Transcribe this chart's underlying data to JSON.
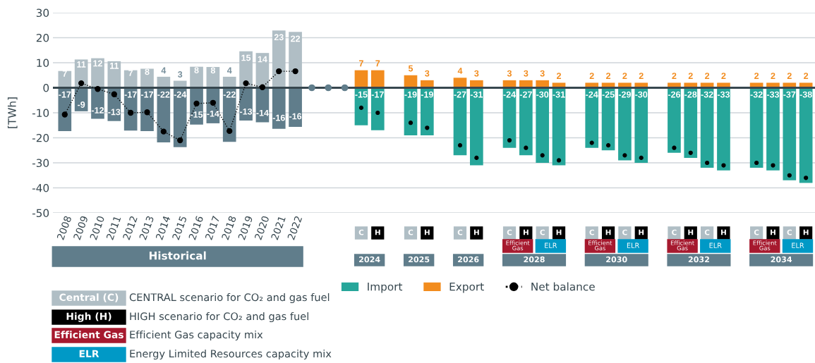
{
  "chart_data": {
    "type": "bar",
    "ylabel": "[TWh]",
    "categories": [
      "2008",
      "2009",
      "2010",
      "2011",
      "2012",
      "2013",
      "2014",
      "2015",
      "2016",
      "2017",
      "2018",
      "2019",
      "2020",
      "2021",
      "2022",
      null,
      null,
      null,
      "C",
      "H",
      null,
      "C",
      "H",
      null,
      "C",
      "H",
      null,
      "C",
      "H",
      "C",
      "H",
      null,
      "C",
      "H",
      "C",
      "H",
      null,
      "C",
      "H",
      "C",
      "H",
      null,
      "C",
      "H",
      "C",
      "H"
    ],
    "series": [
      {
        "name": "Import",
        "color": "#26a69a",
        "colors": [
          "#607d8b",
          "#607d8b",
          "#607d8b",
          "#607d8b",
          "#607d8b",
          "#607d8b",
          "#607d8b",
          "#607d8b",
          "#607d8b",
          "#607d8b",
          "#607d8b",
          "#607d8b",
          "#607d8b",
          "#607d8b",
          "#607d8b",
          "#26a69a",
          "#26a69a",
          "#26a69a",
          "#26a69a",
          "#26a69a",
          "#26a69a",
          "#26a69a",
          "#26a69a",
          "#26a69a",
          "#26a69a",
          "#26a69a",
          "#26a69a",
          "#26a69a",
          "#26a69a",
          "#26a69a",
          "#26a69a",
          "#26a69a",
          "#26a69a",
          "#26a69a",
          "#26a69a",
          "#26a69a",
          "#26a69a",
          "#26a69a",
          "#26a69a",
          "#26a69a",
          "#26a69a",
          "#26a69a",
          "#26a69a",
          "#26a69a",
          "#26a69a",
          "#26a69a"
        ],
        "values": [
          -17.3,
          -9.4,
          -12.4,
          -13.3,
          -17.1,
          -17.3,
          -21.8,
          -23.7,
          -14.7,
          -14.2,
          -21.6,
          -13.1,
          -13.8,
          -16.4,
          -15.6,
          null,
          null,
          null,
          -15,
          -17,
          null,
          -19,
          -19,
          null,
          -27,
          -31,
          null,
          -24,
          -27,
          -30,
          -31,
          null,
          -24,
          -25,
          -29,
          -30,
          null,
          -26,
          -28,
          -32,
          -33,
          null,
          -32,
          -33,
          -37,
          -38
        ],
        "value_labels": [
          "-17",
          "-9",
          "-12",
          "-13",
          "-17",
          "-17",
          "-22",
          "-24",
          "-15",
          "-14",
          "-22",
          "-13",
          "-14",
          "-16",
          "-16",
          null,
          null,
          null,
          "-15",
          "-17",
          null,
          "-19",
          "-19",
          null,
          "-27",
          "-31",
          null,
          "-24",
          "-27",
          "-30",
          "-31",
          null,
          "-24",
          "-25",
          "-29",
          "-30",
          null,
          "-26",
          "-28",
          "-32",
          "-33",
          null,
          "-32",
          "-33",
          "-37",
          "-38"
        ]
      },
      {
        "name": "Export",
        "color": "#f28c1e",
        "colors": [
          "#b0bec5",
          "#b0bec5",
          "#b0bec5",
          "#b0bec5",
          "#b0bec5",
          "#b0bec5",
          "#b0bec5",
          "#b0bec5",
          "#b0bec5",
          "#b0bec5",
          "#b0bec5",
          "#b0bec5",
          "#b0bec5",
          "#b0bec5",
          "#b0bec5",
          "#f28c1e",
          "#f28c1e",
          "#f28c1e",
          "#f28c1e",
          "#f28c1e",
          "#f28c1e",
          "#f28c1e",
          "#f28c1e",
          "#f28c1e",
          "#f28c1e",
          "#f28c1e",
          "#f28c1e",
          "#f28c1e",
          "#f28c1e",
          "#f28c1e",
          "#f28c1e",
          "#f28c1e",
          "#f28c1e",
          "#f28c1e",
          "#f28c1e",
          "#f28c1e",
          "#f28c1e",
          "#f28c1e",
          "#f28c1e",
          "#f28c1e",
          "#f28c1e",
          "#f28c1e",
          "#f28c1e",
          "#f28c1e",
          "#f28c1e",
          "#f28c1e"
        ],
        "values": [
          6.7,
          11.3,
          11.8,
          10.6,
          7,
          7.6,
          4.4,
          2.8,
          8.4,
          8.3,
          4.4,
          14.6,
          13.9,
          22.9,
          22.3,
          null,
          null,
          null,
          7,
          7,
          null,
          5,
          3,
          null,
          4,
          3,
          null,
          3,
          3,
          3,
          2,
          null,
          2,
          2,
          2,
          2,
          null,
          2,
          2,
          2,
          2,
          null,
          2,
          2,
          2,
          2
        ],
        "value_labels": [
          "7",
          "11",
          "12",
          "11",
          "7",
          "8",
          "4",
          "3",
          "8",
          "8",
          "4",
          "15",
          "14",
          "23",
          "22",
          null,
          null,
          null,
          "7",
          "7",
          null,
          "5",
          "3",
          null,
          "4",
          "3",
          null,
          "3",
          "3",
          "3",
          "2",
          null,
          "2",
          "2",
          "2",
          "2",
          null,
          "2",
          "2",
          "2",
          "2",
          null,
          "2",
          "2",
          "2",
          "2"
        ]
      },
      {
        "name": "Net balance",
        "type": "line",
        "color": "#000000",
        "line_style": "dotted",
        "values": [
          -10.7,
          1.8,
          -0.5,
          -2.6,
          -10,
          -9.8,
          -17.5,
          -21,
          -6.3,
          -6,
          -17.3,
          1.8,
          0.2,
          6.6,
          6.6,
          null,
          null,
          null,
          null,
          null,
          null,
          null,
          null,
          null,
          null,
          null,
          null,
          null,
          null,
          null,
          null,
          null,
          null,
          null,
          null,
          null,
          null,
          null,
          null,
          null,
          null,
          null,
          null,
          null,
          null,
          null
        ]
      },
      {
        "type": "scatter",
        "color": "#000000",
        "values": [
          null,
          null,
          null,
          null,
          null,
          null,
          null,
          null,
          null,
          null,
          null,
          null,
          null,
          null,
          null,
          null,
          null,
          null,
          -8,
          -10,
          null,
          -14,
          -16,
          null,
          -23,
          -28,
          null,
          -21,
          -24,
          -27,
          -29,
          null,
          -22,
          -23,
          -27,
          -28,
          null,
          -24,
          -26,
          -30,
          -31,
          null,
          -30,
          -31,
          -35,
          -36
        ]
      }
    ],
    "ylim": [
      -50,
      30
    ],
    "yticks": [
      -50,
      -40,
      -30,
      -20,
      -10,
      0,
      10,
      20,
      30
    ],
    "grid": "y",
    "stacked": true,
    "marker": "circle",
    "legend": "bottom",
    "ref_lines": [
      {
        "axis": "y",
        "value": 0,
        "color": "#37474f"
      }
    ],
    "annotations": [
      "Historical",
      "2024",
      "2025",
      "2026",
      "2028",
      "2030",
      "2032",
      "2034",
      "Efficient Gas",
      "ELR",
      "Efficient Gas",
      "ELR",
      "Efficient Gas",
      "ELR",
      "Efficient Gas",
      "ELR",
      "Central (C)",
      "CENTRAL scenario for CO₂ and gas fuel",
      "High (H)",
      "HIGH scenario for CO₂ and gas fuel",
      "Efficient Gas",
      "Efficient Gas capacity mix",
      "ELR",
      "Energy Limited Resources capacity mix"
    ]
  }
}
